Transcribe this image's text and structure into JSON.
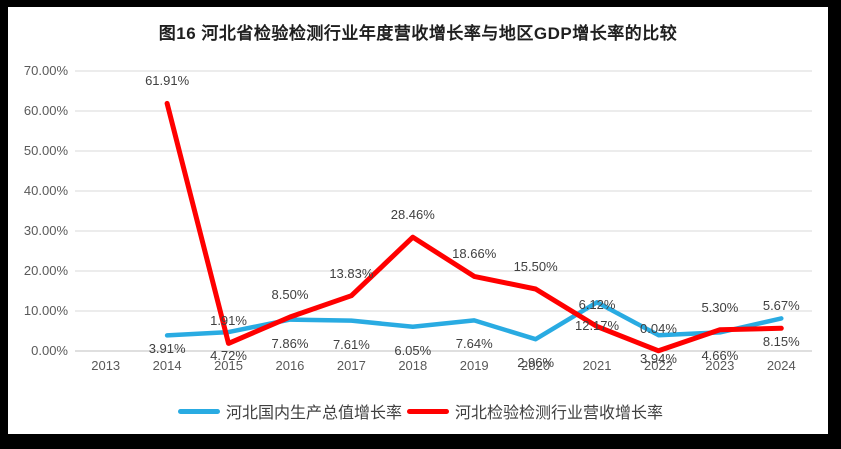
{
  "title": "图16 河北省检验检测行业年度营收增长率与地区GDP增长率的比较",
  "chart_data": {
    "type": "line",
    "categories": [
      "2013",
      "2014",
      "2015",
      "2016",
      "2017",
      "2018",
      "2019",
      "2020",
      "2021",
      "2022",
      "2023",
      "2024"
    ],
    "series": [
      {
        "name": "河北国内生产总值增长率",
        "color": "#29ABE2",
        "label_position": "below",
        "values": [
          null,
          3.91,
          4.72,
          7.86,
          7.61,
          6.05,
          7.64,
          2.96,
          12.17,
          3.94,
          4.66,
          8.15
        ],
        "labels": [
          "",
          "3.91%",
          "4.72%",
          "7.86%",
          "7.61%",
          "6.05%",
          "7.64%",
          "2.96%",
          "12.17%",
          "3.94%",
          "4.66%",
          "8.15%"
        ]
      },
      {
        "name": "河北检验检测行业营收增长率",
        "color": "#FF0000",
        "label_position": "above",
        "values": [
          null,
          61.91,
          1.91,
          8.5,
          13.83,
          28.46,
          18.66,
          15.5,
          6.12,
          0.04,
          5.3,
          5.67
        ],
        "labels": [
          "",
          "61.91%",
          "1.91%",
          "8.50%",
          "13.83%",
          "28.46%",
          "18.66%",
          "15.50%",
          "6.12%",
          "0.04%",
          "5.30%",
          "5.67%"
        ]
      }
    ],
    "ylim": [
      0,
      70
    ],
    "ytick_labels": [
      "0.00%",
      "10.00%",
      "20.00%",
      "30.00%",
      "40.00%",
      "50.00%",
      "60.00%",
      "70.00%"
    ],
    "xlabel": "",
    "ylabel": "",
    "grid": true,
    "legend_position": "bottom"
  },
  "colors": {
    "frame_background": "#000000",
    "panel_background": "#FFFFFF",
    "gridline": "#D9D9D9",
    "axis_line": "#BFBFBF",
    "tick_text": "#595959",
    "data_label_text": "#404040",
    "title_text": "#1F1F1F"
  }
}
